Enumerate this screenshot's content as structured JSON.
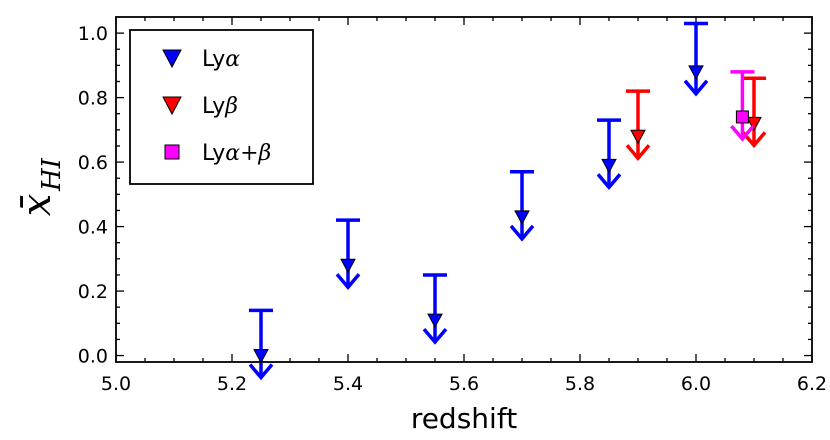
{
  "chart_data": {
    "type": "scatter",
    "title": "",
    "xlabel": "redshift",
    "ylabel": {
      "main": "x̄",
      "sub": "HI"
    },
    "xlim": [
      5.0,
      6.2
    ],
    "ylim": [
      -0.02,
      1.05
    ],
    "xticks": [
      5.0,
      5.2,
      5.4,
      5.6,
      5.8,
      6.0,
      6.2
    ],
    "xtick_labels": [
      "5.0",
      "5.2",
      "5.4",
      "5.6",
      "5.8",
      "6.0",
      "6.2"
    ],
    "yticks": [
      0.0,
      0.2,
      0.4,
      0.6,
      0.8,
      1.0
    ],
    "ytick_labels": [
      "0.0",
      "0.2",
      "0.4",
      "0.6",
      "0.8",
      "1.0"
    ],
    "grid": false,
    "legend_position": "top-left",
    "series": [
      {
        "name": "Lyα",
        "label_prefix": "Ly",
        "label_greek": "α",
        "marker": "triangle-down",
        "color": "#0000ff",
        "points": [
          {
            "x": 5.25,
            "y": 0.0,
            "upper": 0.14
          },
          {
            "x": 5.4,
            "y": 0.28,
            "upper": 0.42
          },
          {
            "x": 5.55,
            "y": 0.11,
            "upper": 0.25
          },
          {
            "x": 5.7,
            "y": 0.43,
            "upper": 0.57
          },
          {
            "x": 5.85,
            "y": 0.59,
            "upper": 0.73
          },
          {
            "x": 6.0,
            "y": 0.88,
            "upper": 1.03
          }
        ]
      },
      {
        "name": "Lyβ",
        "label_prefix": "Ly",
        "label_greek": "β",
        "marker": "triangle-down",
        "color": "#ff0000",
        "points": [
          {
            "x": 5.9,
            "y": 0.68,
            "upper": 0.82
          },
          {
            "x": 6.1,
            "y": 0.72,
            "upper": 0.86
          }
        ]
      },
      {
        "name": "Lyα+β",
        "label_prefix": "Ly",
        "label_greek": "α+β",
        "marker": "square",
        "color": "#ff00ff",
        "points": [
          {
            "x": 6.08,
            "y": 0.74,
            "upper": 0.88
          }
        ]
      }
    ]
  }
}
